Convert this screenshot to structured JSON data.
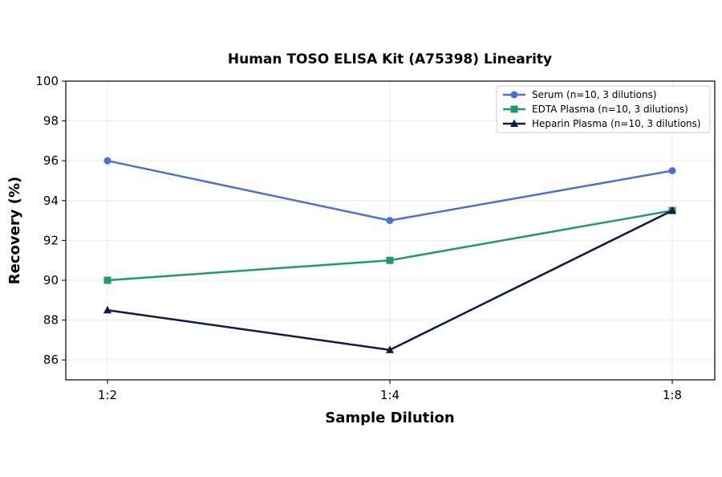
{
  "chart_data": {
    "type": "line",
    "title": "Human TOSO ELISA Kit (A75398) Linearity",
    "xlabel": "Sample Dilution",
    "ylabel": "Recovery (%)",
    "categories": [
      "1:2",
      "1:4",
      "1:8"
    ],
    "ylim": [
      85,
      100
    ],
    "yticks": [
      86,
      88,
      90,
      92,
      94,
      96,
      98,
      100
    ],
    "grid": true,
    "legend_position": "top-right",
    "series": [
      {
        "name": "Serum (n=10, 3 dilutions)",
        "values": [
          96,
          93,
          95.5
        ],
        "color": "#4f6fd4",
        "marker": "circle"
      },
      {
        "name": "EDTA Plasma (n=10, 3 dilutions)",
        "values": [
          90,
          91,
          93.5
        ],
        "color": "#1f9a70",
        "marker": "square"
      },
      {
        "name": "Heparin Plasma (n=10, 3 dilutions)",
        "values": [
          88.5,
          86.5,
          93.5
        ],
        "color": "#0f1a45",
        "marker": "triangle"
      }
    ]
  }
}
